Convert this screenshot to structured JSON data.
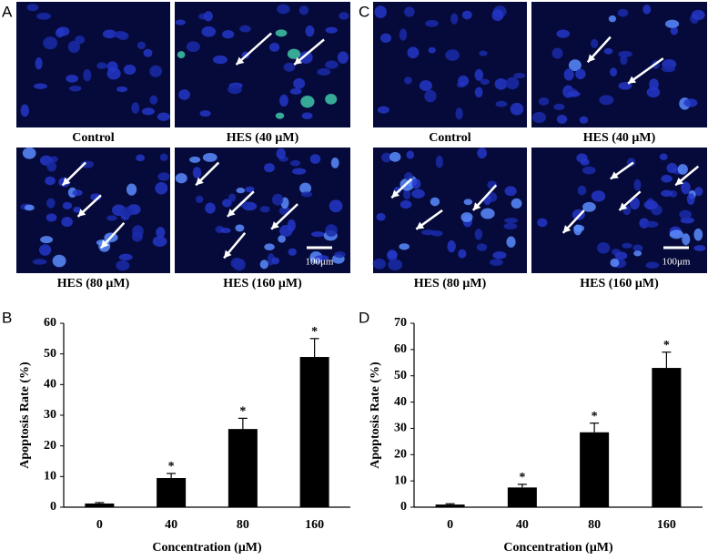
{
  "panels": [
    {
      "label": "A",
      "images": [
        {
          "caption": "Control"
        },
        {
          "caption": "HES (40 μM)"
        },
        {
          "caption": "HES (80 μM)"
        },
        {
          "caption": "HES (160 μM)",
          "scale_bar": "100μm"
        }
      ]
    },
    {
      "label": "C",
      "images": [
        {
          "caption": "Control"
        },
        {
          "caption": "HES (40 μM)"
        },
        {
          "caption": "HES (80 μM)"
        },
        {
          "caption": "HES (160 μM)",
          "scale_bar": "100μm"
        }
      ]
    }
  ],
  "chart_data": [
    {
      "type": "bar",
      "panel_label": "B",
      "ylabel": "Apoptosis Rate (%)",
      "xlabel": "Concentration (μM)",
      "categories": [
        "0",
        "40",
        "80",
        "160"
      ],
      "values": [
        1.2,
        9.5,
        25.5,
        49
      ],
      "errors": [
        0.3,
        1.5,
        3.5,
        6
      ],
      "markers": [
        null,
        "*",
        "*",
        "*"
      ],
      "color": "#000000",
      "ylim": [
        0,
        60
      ],
      "yticks": [
        0,
        10,
        20,
        30,
        40,
        50,
        60
      ]
    },
    {
      "type": "bar",
      "panel_label": "D",
      "ylabel": "Apoptosis Rate (%)",
      "xlabel": "Concentration (μM)",
      "categories": [
        "0",
        "40",
        "80",
        "160"
      ],
      "values": [
        1,
        7.5,
        28.5,
        53
      ],
      "errors": [
        0.3,
        1.2,
        3.5,
        6
      ],
      "markers": [
        null,
        "*",
        "*",
        "*"
      ],
      "color": "#000000",
      "ylim": [
        0,
        70
      ],
      "yticks": [
        0,
        10,
        20,
        30,
        40,
        50,
        60,
        70
      ]
    }
  ]
}
